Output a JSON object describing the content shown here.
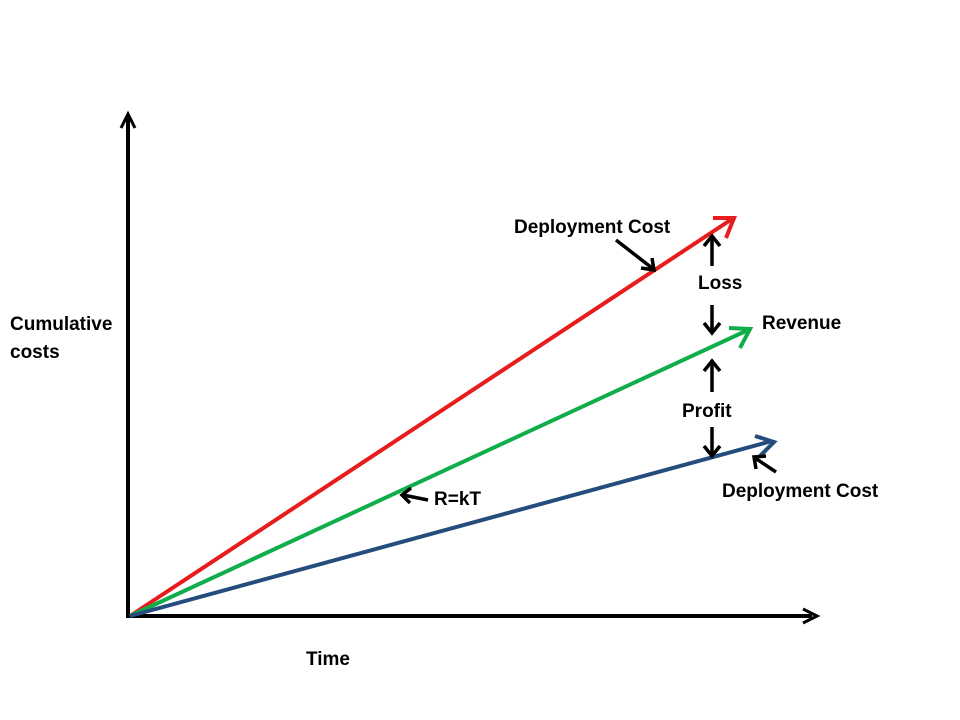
{
  "axes": {
    "y_label_line1": "Cumulative",
    "y_label_line2": "costs",
    "x_label": "Time"
  },
  "lines": {
    "high_cost": {
      "label": "Deployment Cost",
      "color": "#e81c1c"
    },
    "revenue": {
      "label": "Revenue",
      "color": "#0fae4b",
      "formula": "R=kT"
    },
    "low_cost": {
      "label": "Deployment Cost",
      "color": "#244c7c"
    }
  },
  "gaps": {
    "loss": "Loss",
    "profit": "Profit"
  }
}
